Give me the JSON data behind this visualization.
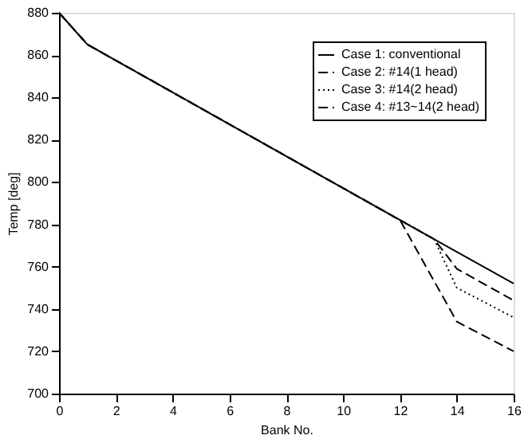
{
  "chart_data": {
    "type": "line",
    "xlabel": "Bank No.",
    "ylabel": "Temp [deg]",
    "xlim": [
      0,
      16
    ],
    "xticks": [
      0,
      2,
      4,
      6,
      8,
      10,
      12,
      14,
      16
    ],
    "ylim": [
      700,
      880
    ],
    "yticks": [
      700,
      720,
      740,
      760,
      780,
      800,
      820,
      840,
      860,
      880
    ],
    "grid": false,
    "legend": "top right",
    "marker": "none",
    "series": [
      {
        "name": "Case 1: conventional",
        "color": "#000000",
        "line_style": "solid",
        "x": [
          0,
          1,
          12,
          14,
          16
        ],
        "values": [
          880,
          865,
          782,
          767,
          752
        ]
      },
      {
        "name": "Case 2: #14(1 head)",
        "color": "#000000",
        "line_style": "dashed",
        "x": [
          0,
          1,
          12,
          13.2,
          14,
          16
        ],
        "values": [
          880,
          865,
          782,
          773,
          759,
          744
        ]
      },
      {
        "name": "Case 3: #14(2 head)",
        "color": "#000000",
        "line_style": "dotted",
        "x": [
          0,
          1,
          12,
          13.2,
          14,
          16
        ],
        "values": [
          880,
          865,
          782,
          773,
          750,
          736
        ]
      },
      {
        "name": "Case 4: #13~14(2 head)",
        "color": "#000000",
        "line_style": "dashed",
        "x": [
          0,
          1,
          12,
          14,
          16
        ],
        "values": [
          880,
          865,
          782,
          734,
          720
        ]
      }
    ]
  }
}
